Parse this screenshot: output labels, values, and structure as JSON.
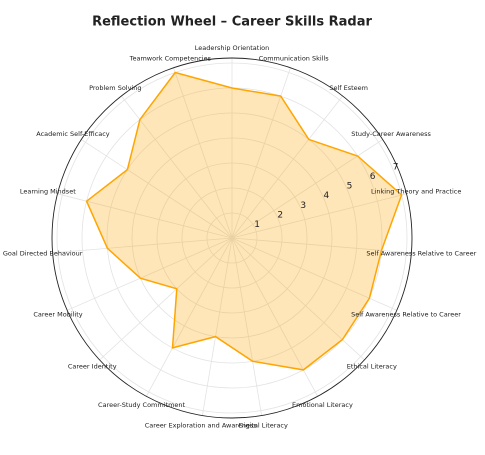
{
  "chart_data": {
    "type": "radar",
    "title": "Reflection Wheel – Career Skills Radar",
    "categories": [
      "Leadership Orientation",
      "Communication Skills",
      "Self Esteem",
      "Study-Career Awareness",
      "Linking Theory and Practice",
      "Self Awareness Relative to Career",
      "Self Awareness Relative to Career",
      "Ethical Literacy",
      "Emotional Literacy",
      "Digital Literacy",
      "Career Exploration and Awareness",
      "Career-Study Commitment",
      "Career Identity",
      "Career Mobility",
      "Goal Directed Behaviour",
      "Learning Mindset",
      "Academic Self-Efficacy",
      "Problem Solving",
      "Teamwork Competencies"
    ],
    "values": [
      6,
      6,
      5,
      6,
      7,
      6,
      6,
      6,
      6,
      5,
      4,
      5,
      3,
      4,
      5,
      6,
      5,
      6,
      7
    ],
    "color": "#ffa500",
    "ylim": [
      0,
      7.2
    ],
    "yticks": [
      1,
      2,
      3,
      4,
      5,
      6,
      7
    ],
    "grid": true
  }
}
